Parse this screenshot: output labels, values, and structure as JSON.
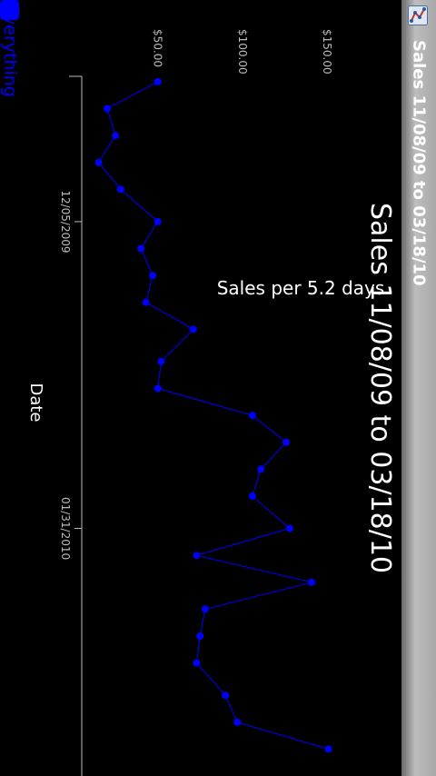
{
  "window": {
    "title": "Sales 11/08/09 to 03/18/10",
    "icon": "chart-app-icon"
  },
  "chart_data": {
    "type": "line",
    "title": "Sales 11/08/09 to 03/18/10",
    "subtitle": "Sales per 5.2 days",
    "xlabel": "Date",
    "ylabel": "",
    "y_tick_labels": [
      "$50.00",
      "$100.00",
      "$150.00"
    ],
    "y_ticks": [
      50,
      100,
      150
    ],
    "ylim": [
      5,
      170
    ],
    "x_tick_labels": [
      "12/05/2009",
      "01/31/2010"
    ],
    "x_ticks": [
      "2009-12-05",
      "2010-01-31"
    ],
    "xlim": [
      "2009-11-08",
      "2010-03-18"
    ],
    "grid": false,
    "legend": [
      {
        "label": "Everything",
        "color": "#0000ff",
        "position": "bottom-left"
      }
    ],
    "series": [
      {
        "name": "Everything",
        "color": "#0000ff",
        "x": [
          "2009-11-09",
          "2009-11-14",
          "2009-11-19",
          "2009-11-24",
          "2009-11-29",
          "2009-12-05",
          "2009-12-10",
          "2009-12-15",
          "2009-12-20",
          "2009-12-25",
          "2009-12-31",
          "2010-01-05",
          "2010-01-10",
          "2010-01-15",
          "2010-01-20",
          "2010-01-25",
          "2010-01-31",
          "2010-02-05",
          "2010-02-10",
          "2010-02-15",
          "2010-02-20",
          "2010-02-25",
          "2010-03-03",
          "2010-03-08",
          "2010-03-13"
        ],
        "values": [
          50,
          20,
          25,
          15,
          28,
          50,
          40,
          47,
          43,
          71,
          52,
          50,
          106,
          126,
          111,
          106,
          128,
          73,
          141,
          78,
          75,
          73,
          90,
          97,
          151
        ]
      }
    ]
  }
}
